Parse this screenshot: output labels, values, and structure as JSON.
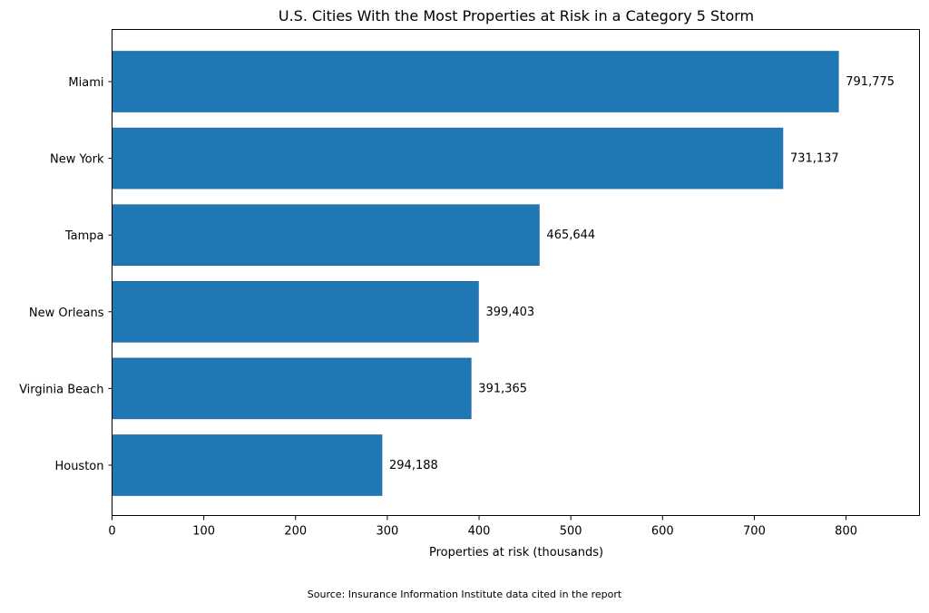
{
  "chart_data": {
    "type": "bar",
    "orientation": "horizontal",
    "title": "U.S. Cities With the Most Properties at Risk in a Category 5 Storm",
    "xlabel": "Properties at risk (thousands)",
    "ylabel": "",
    "categories": [
      "Miami",
      "New York",
      "Tampa",
      "New Orleans",
      "Virginia Beach",
      "Houston"
    ],
    "values": [
      791.775,
      731.137,
      465.644,
      399.403,
      391.365,
      294.188
    ],
    "value_labels": [
      "791,775",
      "731,137",
      "465,644",
      "399,403",
      "391,365",
      "294,188"
    ],
    "xlim": [
      0,
      880
    ],
    "xticks": [
      0,
      100,
      200,
      300,
      400,
      500,
      600,
      700,
      800
    ],
    "grid": false,
    "bar_color": "#1f77b4",
    "source": "Source: Insurance Information Institute data cited in the report"
  }
}
